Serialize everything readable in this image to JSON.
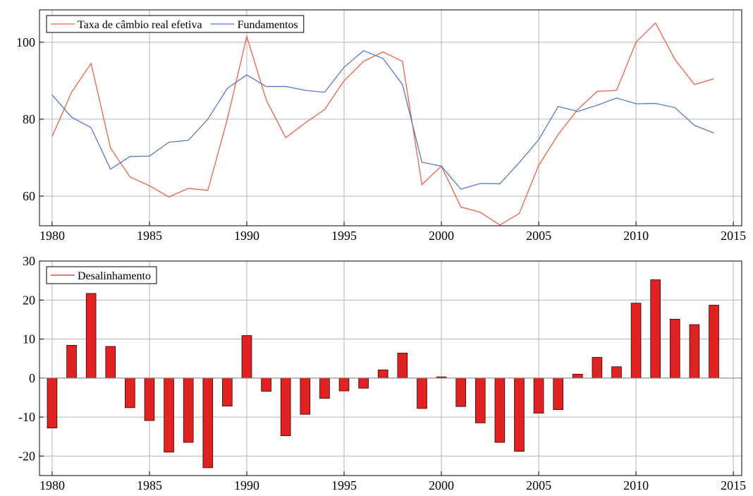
{
  "chart_data": [
    {
      "type": "line",
      "x": [
        1980,
        1981,
        1982,
        1983,
        1984,
        1985,
        1986,
        1987,
        1988,
        1989,
        1990,
        1991,
        1992,
        1993,
        1994,
        1995,
        1996,
        1997,
        1998,
        1999,
        2000,
        2001,
        2002,
        2003,
        2004,
        2005,
        2006,
        2007,
        2008,
        2009,
        2010,
        2011,
        2012,
        2013,
        2014
      ],
      "series": [
        {
          "name": "Taxa de câmbio real efetiva",
          "color": "#f0604a",
          "values": [
            75.5,
            87,
            94.5,
            72.5,
            65,
            62.7,
            59.8,
            62,
            61.5,
            80,
            101.5,
            85,
            75.2,
            79,
            82.5,
            90,
            95,
            97.5,
            95,
            63,
            67.8,
            57.2,
            55.8,
            52.5,
            55.5,
            68,
            76,
            82.5,
            87.2,
            87.5,
            100,
            105,
            95.5,
            89,
            90.5
          ]
        },
        {
          "name": "Fundamentos",
          "color": "#5a78c8",
          "values": [
            86.3,
            80.5,
            77.8,
            67,
            70.3,
            70.4,
            74,
            74.5,
            80,
            88,
            91.5,
            88.5,
            88.5,
            87.5,
            87,
            93.5,
            97.8,
            95.8,
            89,
            68.8,
            67.8,
            61.8,
            63.3,
            63.2,
            68.7,
            74.7,
            83.3,
            82,
            83.6,
            85.5,
            84,
            84.1,
            83,
            78.4,
            76.4
          ]
        }
      ],
      "xlim": [
        1979.35,
        2015.43
      ],
      "xticks": [
        1980,
        1985,
        1990,
        1995,
        2000,
        2005,
        2010,
        2015
      ],
      "ylim": [
        52.3,
        108.4
      ],
      "yticks": [
        60,
        80,
        100
      ],
      "grid": true,
      "legend": "upper left"
    },
    {
      "type": "bar",
      "x": [
        1980,
        1981,
        1982,
        1983,
        1984,
        1985,
        1986,
        1987,
        1988,
        1989,
        1990,
        1991,
        1992,
        1993,
        1994,
        1995,
        1996,
        1997,
        1998,
        1999,
        2000,
        2001,
        2002,
        2003,
        2004,
        2005,
        2006,
        2007,
        2008,
        2009,
        2010,
        2011,
        2012,
        2013,
        2014
      ],
      "series": [
        {
          "name": "Desalinhamento",
          "color": "#e02222",
          "values": [
            -12.8,
            8.4,
            21.7,
            8.1,
            -7.6,
            -10.9,
            -19,
            -16.5,
            -23,
            -7.2,
            10.9,
            -3.4,
            -14.8,
            -9.3,
            -5.2,
            -3.3,
            -2.6,
            2.1,
            6.4,
            -7.8,
            0.3,
            -7.3,
            -11.5,
            -16.5,
            -18.8,
            -9,
            -8.1,
            1,
            5.3,
            2.9,
            19.2,
            25.2,
            15.1,
            13.7,
            18.7
          ]
        }
      ],
      "xlim": [
        1979.35,
        2015.43
      ],
      "xticks": [
        1980,
        1985,
        1990,
        1995,
        2000,
        2005,
        2010,
        2015
      ],
      "ylim": [
        -25,
        30
      ],
      "yticks": [
        -20,
        -10,
        0,
        10,
        20,
        30
      ],
      "grid": true,
      "legend": "upper left"
    }
  ]
}
